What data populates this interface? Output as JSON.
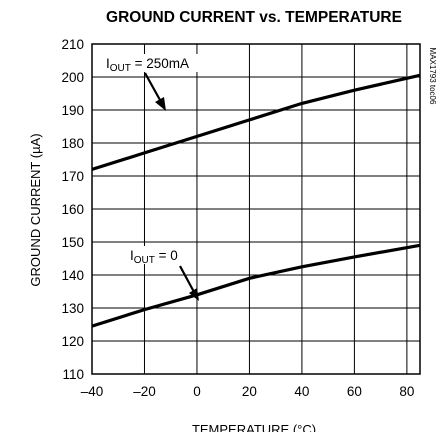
{
  "chart_data": {
    "type": "line",
    "title": "GROUND CURRENT vs. TEMPERATURE",
    "xlabel": "TEMPERATURE (°C)",
    "ylabel": "GROUND CURRENT (µA)",
    "xlim": [
      -40,
      85
    ],
    "ylim": [
      110,
      210
    ],
    "xticks": [
      -40,
      -20,
      0,
      20,
      40,
      60,
      80
    ],
    "yticks": [
      110,
      120,
      130,
      140,
      150,
      160,
      170,
      180,
      190,
      200,
      210
    ],
    "grid": true,
    "chart_id": "MAX1793 toc06",
    "series": [
      {
        "name": "IOUT = 250mA",
        "label_main": "I",
        "label_sub": "OUT",
        "label_rest": " = 250mA",
        "x": [
          -40,
          -20,
          0,
          20,
          40,
          60,
          85
        ],
        "y": [
          172,
          177,
          182,
          187,
          192,
          196,
          200.5
        ]
      },
      {
        "name": "IOUT = 0",
        "label_main": "I",
        "label_sub": "OUT",
        "label_rest": " = 0",
        "x": [
          -40,
          -20,
          0,
          20,
          40,
          60,
          85
        ],
        "y": [
          124.5,
          129.5,
          134,
          139,
          142.5,
          145.5,
          149
        ]
      }
    ]
  }
}
